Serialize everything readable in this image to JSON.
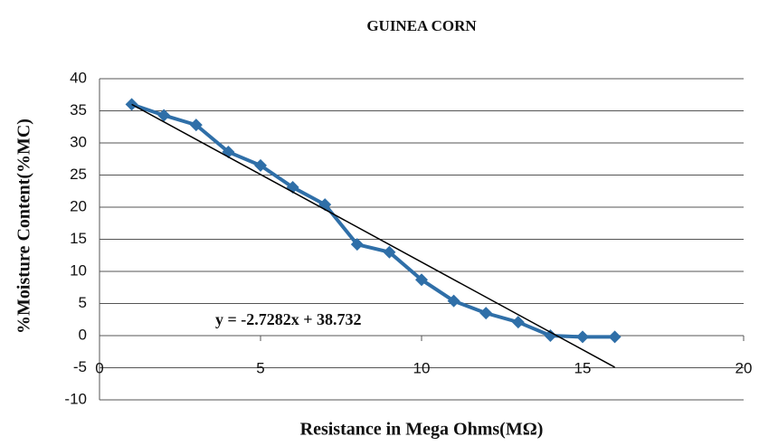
{
  "chart_data": {
    "type": "line",
    "title": "GUINEA CORN",
    "x_label": "Resistance in Mega Ohms(MΩ)",
    "y_label": "%Moisture Content(%MC)",
    "x": [
      1,
      2,
      3,
      4,
      5,
      6,
      7,
      8,
      9,
      10,
      11,
      12,
      13,
      14,
      15,
      16
    ],
    "series": [
      {
        "color": "#2f6fa8",
        "values": [
          36,
          34.3,
          32.8,
          28.6,
          26.5,
          23.1,
          20.4,
          14.2,
          13,
          8.7,
          5.4,
          3.5,
          2.1,
          0,
          -0.2,
          -0.2
        ]
      }
    ],
    "trendline": {
      "label": "y = -2.7282x + 38.732",
      "slope": -2.7282,
      "intercept": 38.732,
      "x": [
        1,
        16
      ],
      "color": "#000000"
    },
    "xlim": [
      0,
      20
    ],
    "xticks": [
      0,
      5,
      10,
      15,
      20
    ],
    "ylim": [
      -10,
      40
    ],
    "yticks": [
      -10,
      -5,
      0,
      5,
      10,
      15,
      20,
      25,
      30,
      35,
      40
    ],
    "grid": true
  }
}
